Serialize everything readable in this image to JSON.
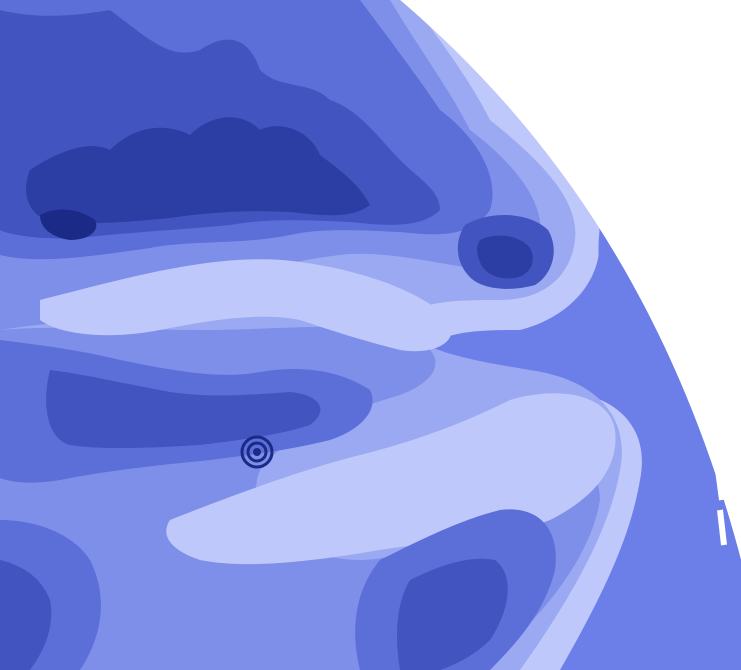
{
  "map": {
    "kind": "shaded-contour-map",
    "palette": {
      "background": "#ffffff",
      "plain": "#6c7ee7",
      "pale": "#bec8fb",
      "light": "#9aa9f1",
      "mid_light": "#7d8fe8",
      "mid": "#5c6ed8",
      "mid_dark": "#4254c0",
      "dark": "#2c3da3",
      "darkest": "#1a2a86",
      "marker_stroke": "#1a2a86"
    },
    "features": {
      "marker": "concentric-circle-marker-icon",
      "coastline": "dashed-edge-fragments"
    }
  }
}
